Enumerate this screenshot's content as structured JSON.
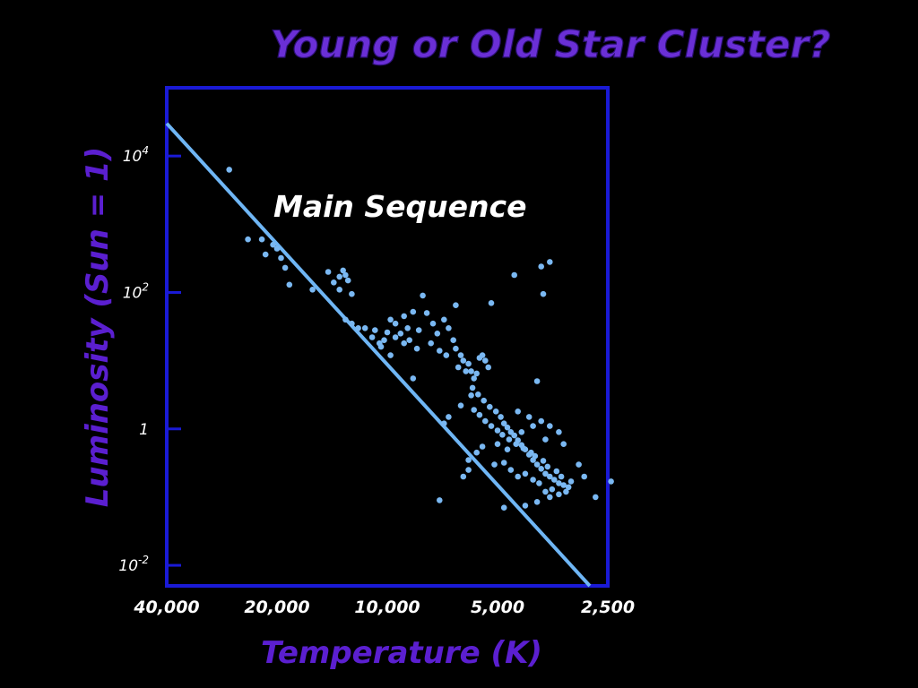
{
  "chart_data": {
    "type": "scatter",
    "title": "Young or Old Star Cluster?",
    "xlabel": "Temperature (K)",
    "ylabel": "Luminosity (Sun = 1)",
    "x_scale": "log",
    "x_reversed": true,
    "y_scale": "log",
    "xlim": [
      40000,
      2500
    ],
    "ylim": [
      0.005,
      100000
    ],
    "x_ticks": [
      {
        "value": 40000,
        "label": "40,000"
      },
      {
        "value": 20000,
        "label": "20,000"
      },
      {
        "value": 10000,
        "label": "10,000"
      },
      {
        "value": 5000,
        "label": "5,000"
      },
      {
        "value": 2500,
        "label": "2,500"
      }
    ],
    "y_ticks": [
      {
        "value": 10000,
        "base": "10",
        "exp": "4"
      },
      {
        "value": 100,
        "base": "10",
        "exp": "2"
      },
      {
        "value": 1,
        "base": "1",
        "exp": ""
      },
      {
        "value": 0.01,
        "base": "10",
        "exp": "-2"
      }
    ],
    "annotation": "Main Sequence",
    "main_sequence_line": [
      [
        40000,
        30000
      ],
      [
        2800,
        0.005
      ]
    ],
    "colors": {
      "points": "#7ab8f2",
      "line": "#6fb6f5",
      "frame": "#1a1ad6",
      "title": "#6a2fd6",
      "axis_title": "#5b1fd0"
    },
    "grid": false,
    "points": [
      [
        27000,
        6300
      ],
      [
        24000,
        600
      ],
      [
        22000,
        600
      ],
      [
        21500,
        360
      ],
      [
        20500,
        500
      ],
      [
        20000,
        440
      ],
      [
        19500,
        320
      ],
      [
        19000,
        230
      ],
      [
        18500,
        130
      ],
      [
        16000,
        110
      ],
      [
        14500,
        200
      ],
      [
        14000,
        140
      ],
      [
        13500,
        170
      ],
      [
        13200,
        210
      ],
      [
        13000,
        180
      ],
      [
        12800,
        150
      ],
      [
        12500,
        95
      ],
      [
        13500,
        110
      ],
      [
        13000,
        40
      ],
      [
        12500,
        35
      ],
      [
        12000,
        30
      ],
      [
        11500,
        30
      ],
      [
        11000,
        22
      ],
      [
        10500,
        18
      ],
      [
        10200,
        20
      ],
      [
        10000,
        26
      ],
      [
        9800,
        40
      ],
      [
        9500,
        35
      ],
      [
        9200,
        25
      ],
      [
        9000,
        45
      ],
      [
        8800,
        30
      ],
      [
        8500,
        52
      ],
      [
        8200,
        28
      ],
      [
        8000,
        90
      ],
      [
        7800,
        50
      ],
      [
        7500,
        35
      ],
      [
        7300,
        25
      ],
      [
        7000,
        40
      ],
      [
        6800,
        30
      ],
      [
        6600,
        20
      ],
      [
        6500,
        15
      ],
      [
        6300,
        12
      ],
      [
        6200,
        10
      ],
      [
        6000,
        9
      ],
      [
        5900,
        7
      ],
      [
        5800,
        5.5
      ],
      [
        5700,
        6.5
      ],
      [
        5600,
        11
      ],
      [
        5500,
        12
      ],
      [
        5400,
        10
      ],
      [
        5300,
        8
      ],
      [
        5200,
        70
      ],
      [
        6500,
        65
      ],
      [
        9000,
        18
      ],
      [
        9500,
        22
      ],
      [
        9800,
        12
      ],
      [
        10400,
        16
      ],
      [
        10800,
        28
      ],
      [
        8700,
        20
      ],
      [
        8300,
        15
      ],
      [
        7600,
        18
      ],
      [
        7200,
        14
      ],
      [
        6900,
        12
      ],
      [
        6400,
        8
      ],
      [
        6100,
        7
      ],
      [
        5850,
        4
      ],
      [
        5650,
        3.2
      ],
      [
        5450,
        2.6
      ],
      [
        5250,
        2.1
      ],
      [
        5050,
        1.8
      ],
      [
        4900,
        1.5
      ],
      [
        4800,
        1.2
      ],
      [
        4700,
        1.05
      ],
      [
        4600,
        0.9
      ],
      [
        4500,
        0.8
      ],
      [
        4400,
        0.68
      ],
      [
        4300,
        0.58
      ],
      [
        4200,
        0.5
      ],
      [
        4100,
        0.42
      ],
      [
        4000,
        0.35
      ],
      [
        3900,
        0.3
      ],
      [
        3800,
        0.26
      ],
      [
        3700,
        0.22
      ],
      [
        3600,
        0.2
      ],
      [
        3500,
        0.18
      ],
      [
        3400,
        0.16
      ],
      [
        3300,
        0.15
      ],
      [
        3200,
        0.14
      ],
      [
        5800,
        1.9
      ],
      [
        5600,
        1.6
      ],
      [
        5400,
        1.3
      ],
      [
        5200,
        1.1
      ],
      [
        5000,
        0.95
      ],
      [
        4850,
        0.82
      ],
      [
        4650,
        0.7
      ],
      [
        4450,
        0.6
      ],
      [
        4250,
        0.52
      ],
      [
        4050,
        0.45
      ],
      [
        3950,
        0.4
      ],
      [
        3750,
        0.34
      ],
      [
        3650,
        0.28
      ],
      [
        3450,
        0.24
      ],
      [
        3350,
        0.2
      ],
      [
        3150,
        0.17
      ],
      [
        6000,
        0.35
      ],
      [
        5700,
        0.45
      ],
      [
        5500,
        0.55
      ],
      [
        5100,
        0.3
      ],
      [
        4800,
        0.32
      ],
      [
        4600,
        0.25
      ],
      [
        4400,
        0.2
      ],
      [
        4200,
        0.22
      ],
      [
        4000,
        0.18
      ],
      [
        3850,
        0.16
      ],
      [
        3700,
        0.12
      ],
      [
        3550,
        0.13
      ],
      [
        3400,
        0.11
      ],
      [
        3250,
        0.12
      ],
      [
        3000,
        0.3
      ],
      [
        2900,
        0.2
      ],
      [
        2700,
        0.1
      ],
      [
        2450,
        0.17
      ],
      [
        4800,
        0.07
      ],
      [
        4200,
        0.075
      ],
      [
        3900,
        0.085
      ],
      [
        3600,
        0.1
      ],
      [
        6200,
        0.2
      ],
      [
        6000,
        0.25
      ],
      [
        7200,
        0.09
      ],
      [
        7000,
        1.2
      ],
      [
        6800,
        1.5
      ],
      [
        5900,
        3.1
      ],
      [
        6300,
        2.2
      ],
      [
        4400,
        1.8
      ],
      [
        4100,
        1.5
      ],
      [
        3800,
        1.3
      ],
      [
        3600,
        1.1
      ],
      [
        3400,
        0.9
      ],
      [
        3300,
        0.6
      ],
      [
        3900,
        5
      ],
      [
        3800,
        240
      ],
      [
        3600,
        280
      ],
      [
        4500,
        180
      ],
      [
        3750,
        95
      ],
      [
        8500,
        5.5
      ],
      [
        4000,
        1.1
      ],
      [
        3700,
        0.7
      ],
      [
        4300,
        0.9
      ],
      [
        4700,
        0.5
      ],
      [
        5000,
        0.6
      ]
    ]
  }
}
